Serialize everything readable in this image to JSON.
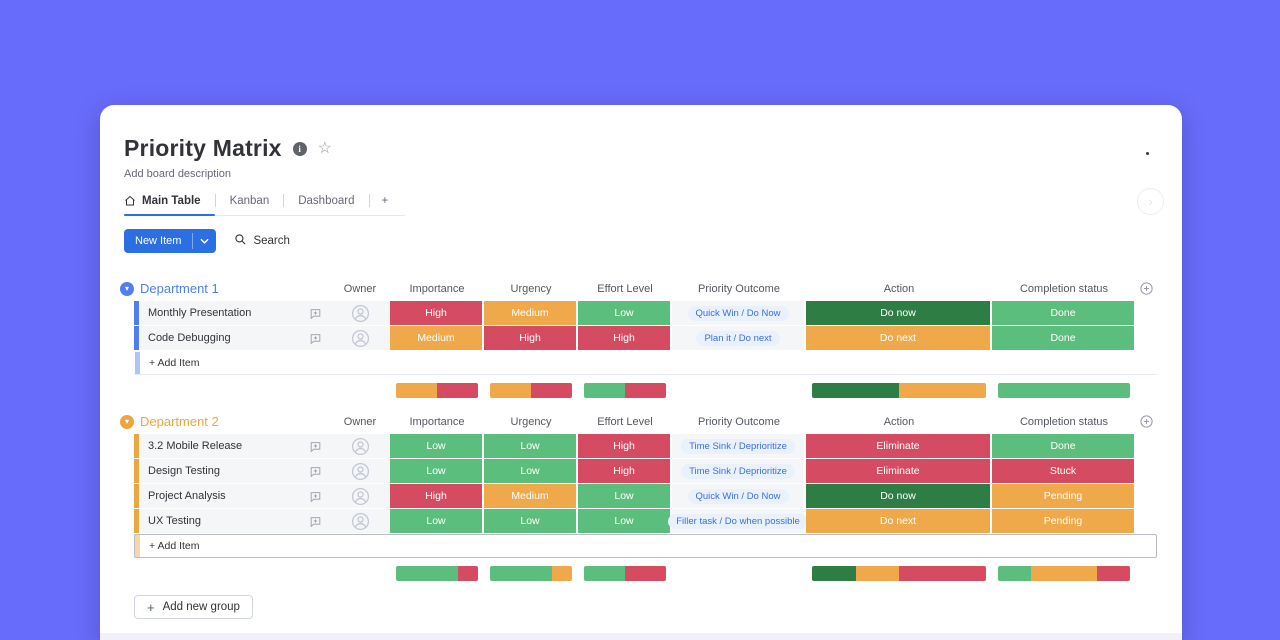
{
  "colors": {
    "background": "#686cfa",
    "red": "#d54b62",
    "orange": "#efa94a",
    "green": "#5cbe7c",
    "dark_green": "#2e7d45",
    "group1": "#507df0",
    "group2": "#eda63f",
    "button_blue": "#2b6fe3",
    "link_blue": "#3a6fe0"
  },
  "board": {
    "title": "Priority Matrix",
    "description": "Add board description",
    "tabs": {
      "main": "Main Table",
      "kanban": "Kanban",
      "dashboard": "Dashboard",
      "add": "+"
    },
    "new_item": "New Item",
    "search": "Search",
    "add_group": "Add new group",
    "add_group_plus": "+",
    "columns": {
      "owner": "Owner",
      "importance": "Importance",
      "urgency": "Urgency",
      "effort": "Effort Level",
      "outcome": "Priority Outcome",
      "action": "Action",
      "completion": "Completion status"
    }
  },
  "groups": [
    {
      "name": "Department 1",
      "color": "#507df0",
      "add_item": "+ Add Item",
      "items": [
        {
          "name": "Monthly Presentation",
          "importance": {
            "label": "High",
            "bg": "#d54b62"
          },
          "urgency": {
            "label": "Medium",
            "bg": "#efa94a"
          },
          "effort": {
            "label": "Low",
            "bg": "#5cbe7c"
          },
          "outcome": "Quick Win / Do Now",
          "action": {
            "label": "Do now",
            "bg": "#2e7d45"
          },
          "completion": {
            "label": "Done",
            "bg": "#5cbe7c"
          }
        },
        {
          "name": "Code Debugging",
          "importance": {
            "label": "Medium",
            "bg": "#efa94a"
          },
          "urgency": {
            "label": "High",
            "bg": "#d54b62"
          },
          "effort": {
            "label": "High",
            "bg": "#d54b62"
          },
          "outcome": "Plan it / Do next",
          "action": {
            "label": "Do next",
            "bg": "#efa94a"
          },
          "completion": {
            "label": "Done",
            "bg": "#5cbe7c"
          }
        }
      ],
      "summary": {
        "importance": [
          {
            "bg": "#efa94a",
            "pct": 50
          },
          {
            "bg": "#d54b62",
            "pct": 50
          }
        ],
        "urgency": [
          {
            "bg": "#efa94a",
            "pct": 50
          },
          {
            "bg": "#d54b62",
            "pct": 50
          }
        ],
        "effort": [
          {
            "bg": "#5cbe7c",
            "pct": 50
          },
          {
            "bg": "#d54b62",
            "pct": 50
          }
        ],
        "action": [
          {
            "bg": "#2e7d45",
            "pct": 50
          },
          {
            "bg": "#efa94a",
            "pct": 50
          }
        ],
        "completion": [
          {
            "bg": "#5cbe7c",
            "pct": 100
          }
        ]
      }
    },
    {
      "name": "Department 2",
      "color": "#eda63f",
      "add_item": "+ Add Item",
      "items": [
        {
          "name": "3.2 Mobile Release",
          "importance": {
            "label": "Low",
            "bg": "#5cbe7c"
          },
          "urgency": {
            "label": "Low",
            "bg": "#5cbe7c"
          },
          "effort": {
            "label": "High",
            "bg": "#d54b62"
          },
          "outcome": "Time Sink / Deprioritize",
          "action": {
            "label": "Eliminate",
            "bg": "#d54b62"
          },
          "completion": {
            "label": "Done",
            "bg": "#5cbe7c"
          }
        },
        {
          "name": "Design Testing",
          "importance": {
            "label": "Low",
            "bg": "#5cbe7c"
          },
          "urgency": {
            "label": "Low",
            "bg": "#5cbe7c"
          },
          "effort": {
            "label": "High",
            "bg": "#d54b62"
          },
          "outcome": "Time Sink / Deprioritize",
          "action": {
            "label": "Eliminate",
            "bg": "#d54b62"
          },
          "completion": {
            "label": "Stuck",
            "bg": "#d54b62"
          }
        },
        {
          "name": "Project Analysis",
          "importance": {
            "label": "High",
            "bg": "#d54b62"
          },
          "urgency": {
            "label": "Medium",
            "bg": "#efa94a"
          },
          "effort": {
            "label": "Low",
            "bg": "#5cbe7c"
          },
          "outcome": "Quick Win / Do Now",
          "action": {
            "label": "Do now",
            "bg": "#2e7d45"
          },
          "completion": {
            "label": "Pending",
            "bg": "#efa94a"
          }
        },
        {
          "name": "UX Testing",
          "importance": {
            "label": "Low",
            "bg": "#5cbe7c"
          },
          "urgency": {
            "label": "Low",
            "bg": "#5cbe7c"
          },
          "effort": {
            "label": "Low",
            "bg": "#5cbe7c"
          },
          "outcome": "Filler task / Do when possible",
          "action": {
            "label": "Do next",
            "bg": "#efa94a"
          },
          "completion": {
            "label": "Pending",
            "bg": "#efa94a"
          }
        }
      ],
      "summary": {
        "importance": [
          {
            "bg": "#5cbe7c",
            "pct": 75
          },
          {
            "bg": "#d54b62",
            "pct": 25
          }
        ],
        "urgency": [
          {
            "bg": "#5cbe7c",
            "pct": 75
          },
          {
            "bg": "#efa94a",
            "pct": 25
          }
        ],
        "effort": [
          {
            "bg": "#5cbe7c",
            "pct": 50
          },
          {
            "bg": "#d54b62",
            "pct": 50
          }
        ],
        "action": [
          {
            "bg": "#2e7d45",
            "pct": 25
          },
          {
            "bg": "#efa94a",
            "pct": 25
          },
          {
            "bg": "#d54b62",
            "pct": 50
          }
        ],
        "completion": [
          {
            "bg": "#5cbe7c",
            "pct": 25
          },
          {
            "bg": "#efa94a",
            "pct": 50
          },
          {
            "bg": "#d54b62",
            "pct": 25
          }
        ]
      }
    }
  ]
}
